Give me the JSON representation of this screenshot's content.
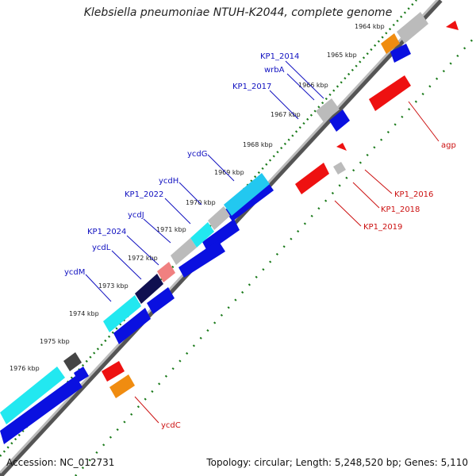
{
  "title": "Klebsiella pneumoniae NTUH-K2044, complete genome",
  "accession": "Accession: NC_012731",
  "topology": "Topology: circular; Length: 5,248,520 bp; Genes: 5,110",
  "colors": {
    "forward_gene": "#0a10e0",
    "reverse_gene": "#ee1111",
    "backbone": "#888888",
    "tick_green": "#1a7a1a",
    "label_blue": "#1010c0",
    "label_red": "#cc1010"
  },
  "scale_labels": [
    "1964 kbp",
    "1965 kbp",
    "1966 kbp",
    "1967 kbp",
    "1968 kbp",
    "1969 kbp",
    "1970 kbp",
    "1971 kbp",
    "1972 kbp",
    "1973 kbp",
    "1974 kbp",
    "1975 kbp",
    "1976 kbp"
  ],
  "gene_labels_blue": [
    "KP1_2014",
    "wrbA",
    "KP1_2017",
    "ycdG",
    "ycdH",
    "KP1_2022",
    "ycdJ",
    "KP1_2024",
    "ycdL",
    "ycdM"
  ],
  "gene_labels_red": [
    "agp",
    "KP1_2016",
    "KP1_2018",
    "KP1_2019",
    "ycdC"
  ]
}
